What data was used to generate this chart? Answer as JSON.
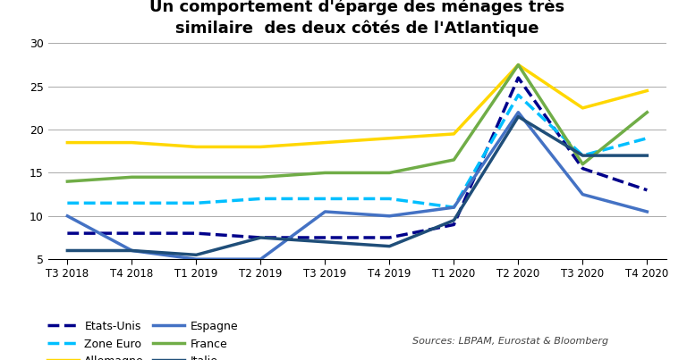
{
  "title": "Un comportement d'éparge des ménages très\nsimilaire  des deux côtés de l'Atlantique",
  "x_labels": [
    "T3 2018",
    "T4 2018",
    "T1 2019",
    "T2 2019",
    "T3 2019",
    "T4 2019",
    "T1 2020",
    "T2 2020",
    "T3 2020",
    "T4 2020"
  ],
  "x_labels_compact": [
    "T3 2018T4 2018T1 2019T2 2019T3 2019T4 2019T1 2020T2 2020T3 2020T4 2020"
  ],
  "series": {
    "Etats-Unis": {
      "values": [
        8.0,
        8.0,
        8.0,
        7.5,
        7.5,
        7.5,
        9.0,
        26.0,
        15.5,
        13.0
      ],
      "color": "#00008B",
      "linestyle": "dashed",
      "linewidth": 2.5,
      "dashes": [
        6,
        3
      ]
    },
    "Zone Euro": {
      "values": [
        11.5,
        11.5,
        11.5,
        12.0,
        12.0,
        12.0,
        11.0,
        24.0,
        17.0,
        19.0
      ],
      "color": "#00BFFF",
      "linestyle": "dashed",
      "linewidth": 2.5,
      "dashes": [
        6,
        3
      ]
    },
    "Allemagne": {
      "values": [
        18.5,
        18.5,
        18.0,
        18.0,
        18.5,
        19.0,
        19.5,
        27.5,
        22.5,
        24.5
      ],
      "color": "#FFD700",
      "linestyle": "solid",
      "linewidth": 2.5,
      "dashes": []
    },
    "Espagne": {
      "values": [
        10.0,
        6.0,
        5.0,
        5.0,
        10.5,
        10.0,
        11.0,
        22.0,
        12.5,
        10.5
      ],
      "color": "#4472C4",
      "linestyle": "solid",
      "linewidth": 2.5,
      "dashes": []
    },
    "France": {
      "values": [
        14.0,
        14.5,
        14.5,
        14.5,
        15.0,
        15.0,
        16.5,
        27.5,
        16.0,
        22.0
      ],
      "color": "#70AD47",
      "linestyle": "solid",
      "linewidth": 2.5,
      "dashes": []
    },
    "Italie": {
      "values": [
        6.0,
        6.0,
        5.5,
        7.5,
        7.0,
        6.5,
        9.5,
        21.5,
        17.0,
        17.0
      ],
      "color": "#1F4E79",
      "linestyle": "solid",
      "linewidth": 2.5,
      "dashes": []
    }
  },
  "ylim": [
    5,
    30
  ],
  "yticks": [
    5,
    10,
    15,
    20,
    25,
    30
  ],
  "source_text": "Sources: LBPAM, Eurostat & Bloomberg",
  "background_color": "#FFFFFF",
  "grid_color": "#AAAAAA",
  "legend_order_col1": [
    "Etats-Unis",
    "Allemagne",
    "France"
  ],
  "legend_order_col2": [
    "Zone Euro",
    "Espagne",
    "Italie"
  ]
}
